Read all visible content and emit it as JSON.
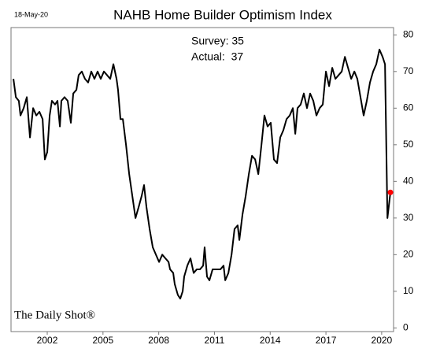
{
  "chart_data": {
    "type": "line",
    "title": "NAHB Home Builder Optimism Index",
    "date": "18-May-20",
    "annotations": [
      "Survey: 35",
      "Actual:  37"
    ],
    "source": "The Daily Shot®",
    "x": [
      2000.18,
      2000.31,
      2000.47,
      2000.56,
      2000.73,
      2000.9,
      2001.07,
      2001.24,
      2001.41,
      2001.58,
      2001.75,
      2001.87,
      2002.0,
      2002.13,
      2002.25,
      2002.42,
      2002.55,
      2002.68,
      2002.76,
      2002.93,
      2003.1,
      2003.27,
      2003.4,
      2003.57,
      2003.69,
      2003.86,
      2004.03,
      2004.2,
      2004.37,
      2004.54,
      2004.71,
      2004.88,
      2005.05,
      2005.22,
      2005.39,
      2005.56,
      2005.73,
      2005.81,
      2005.94,
      2006.07,
      2006.24,
      2006.41,
      2006.58,
      2006.75,
      2006.92,
      2007.08,
      2007.21,
      2007.34,
      2007.51,
      2007.68,
      2007.85,
      2008.02,
      2008.19,
      2008.36,
      2008.53,
      2008.61,
      2008.78,
      2008.86,
      2009.03,
      2009.16,
      2009.29,
      2009.37,
      2009.54,
      2009.71,
      2009.88,
      2010.05,
      2010.22,
      2010.39,
      2010.47,
      2010.6,
      2010.73,
      2010.9,
      2011.15,
      2011.32,
      2011.49,
      2011.58,
      2011.75,
      2011.92,
      2012.08,
      2012.25,
      2012.34,
      2012.51,
      2012.68,
      2012.85,
      2013.02,
      2013.19,
      2013.36,
      2013.53,
      2013.69,
      2013.86,
      2014.03,
      2014.2,
      2014.37,
      2014.54,
      2014.71,
      2014.88,
      2015.05,
      2015.22,
      2015.35,
      2015.47,
      2015.64,
      2015.81,
      2015.98,
      2016.15,
      2016.32,
      2016.49,
      2016.66,
      2016.83,
      2017.0,
      2017.17,
      2017.34,
      2017.51,
      2017.68,
      2017.85,
      2018.02,
      2018.19,
      2018.36,
      2018.53,
      2018.69,
      2018.86,
      2019.03,
      2019.2,
      2019.37,
      2019.54,
      2019.71,
      2019.88,
      2020.05,
      2020.18,
      2020.31,
      2020.47
    ],
    "series": [
      {
        "color": "#000000",
        "values": [
          68,
          63,
          62,
          58,
          60,
          63,
          52,
          60,
          58,
          59,
          57,
          46,
          48,
          58,
          62,
          61,
          62,
          55,
          62,
          63,
          62,
          56,
          64,
          65,
          69,
          70,
          68,
          67,
          70,
          68,
          70,
          68,
          70,
          69,
          68,
          72,
          68,
          65,
          57,
          57,
          50,
          42,
          36,
          30,
          33,
          36,
          39,
          33,
          27,
          22,
          20,
          18,
          20,
          19,
          18,
          16,
          15,
          12,
          9,
          8,
          10,
          14,
          17,
          19,
          15,
          16,
          16,
          17,
          22,
          14,
          13,
          16,
          16,
          16,
          17,
          13,
          15,
          20,
          27,
          28,
          24,
          31,
          36,
          42,
          47,
          46,
          42,
          50,
          58,
          55,
          56,
          46,
          45,
          52,
          54,
          57,
          58,
          60,
          53,
          60,
          61,
          64,
          60,
          64,
          62,
          58,
          60,
          61,
          70,
          66,
          71,
          68,
          69,
          70,
          74,
          71,
          68,
          70,
          68,
          63,
          58,
          62,
          67,
          70,
          72,
          76,
          74,
          72,
          30,
          37
        ]
      }
    ],
    "highlight_last": true,
    "highlight_color": "#ff0000",
    "xlim": [
      2000.05,
      2020.64
    ],
    "xticks": [
      2002,
      2005,
      2008,
      2011,
      2014,
      2017,
      2020
    ],
    "ylim": [
      -1,
      82
    ],
    "yticks": [
      0,
      10,
      20,
      30,
      40,
      50,
      60,
      70,
      80
    ]
  }
}
